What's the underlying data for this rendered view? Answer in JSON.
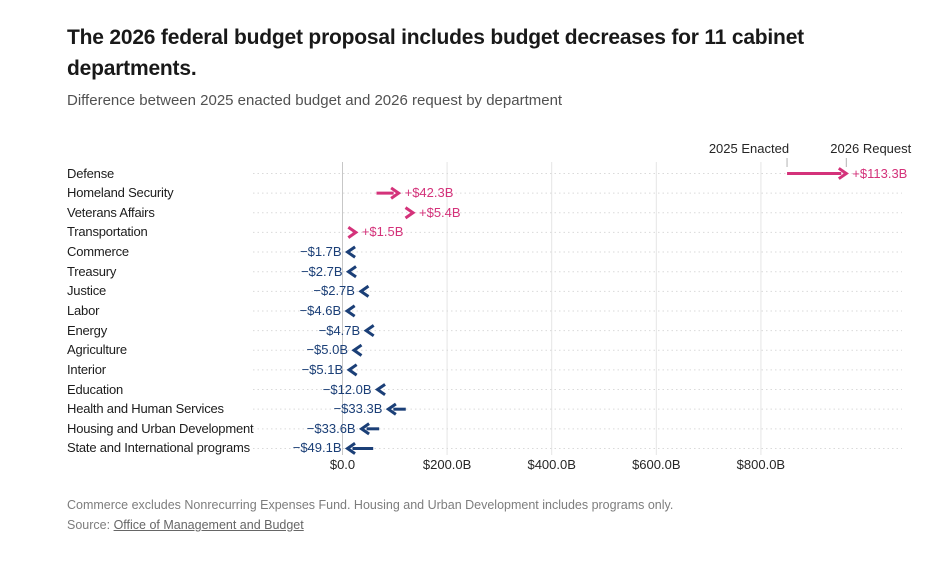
{
  "header": {
    "title": "The 2026 federal budget proposal includes budget decreases for 11 cabinet departments.",
    "subtitle": "Difference between 2025 enacted budget and 2026 request by department"
  },
  "chart_data": {
    "type": "arrow",
    "unit": "billions of US dollars",
    "xlim": [
      0,
      1070
    ],
    "grid": "vertical",
    "x_ticks": [
      {
        "label": "$0.0",
        "value": 0
      },
      {
        "label": "$200.0B",
        "value": 200
      },
      {
        "label": "$400.0B",
        "value": 400
      },
      {
        "label": "$600.0B",
        "value": 600
      },
      {
        "label": "$800.0B",
        "value": 800
      }
    ],
    "annotations": [
      {
        "text": "2025 Enacted",
        "value": 850
      },
      {
        "text": "2026 Request",
        "value": 963.3
      }
    ],
    "colors": {
      "increase": "#d4327a",
      "decrease": "#1b3f77"
    },
    "rows": [
      {
        "department": "Defense",
        "enacted_2025": 850.0,
        "request_2026": 963.3,
        "change": 113.3,
        "change_label": "+$113.3B",
        "direction": "increase"
      },
      {
        "department": "Homeland Security",
        "enacted_2025": 65.0,
        "request_2026": 107.3,
        "change": 42.3,
        "change_label": "+$42.3B",
        "direction": "increase"
      },
      {
        "department": "Veterans Affairs",
        "enacted_2025": 129.4,
        "request_2026": 134.8,
        "change": 5.4,
        "change_label": "+$5.4B",
        "direction": "increase"
      },
      {
        "department": "Transportation",
        "enacted_2025": 24.0,
        "request_2026": 25.5,
        "change": 1.5,
        "change_label": "+$1.5B",
        "direction": "increase"
      },
      {
        "department": "Commerce",
        "enacted_2025": 11.4,
        "request_2026": 9.7,
        "change": -1.7,
        "change_label": "−$1.7B",
        "direction": "decrease"
      },
      {
        "department": "Treasury",
        "enacted_2025": 14.2,
        "request_2026": 11.5,
        "change": -2.7,
        "change_label": "−$2.7B",
        "direction": "decrease"
      },
      {
        "department": "Justice",
        "enacted_2025": 38.0,
        "request_2026": 35.3,
        "change": -2.7,
        "change_label": "−$2.7B",
        "direction": "decrease"
      },
      {
        "department": "Labor",
        "enacted_2025": 13.5,
        "request_2026": 8.9,
        "change": -4.6,
        "change_label": "−$4.6B",
        "direction": "decrease"
      },
      {
        "department": "Energy",
        "enacted_2025": 50.0,
        "request_2026": 45.3,
        "change": -4.7,
        "change_label": "−$4.7B",
        "direction": "decrease"
      },
      {
        "department": "Agriculture",
        "enacted_2025": 27.0,
        "request_2026": 22.0,
        "change": -5.0,
        "change_label": "−$5.0B",
        "direction": "decrease"
      },
      {
        "department": "Interior",
        "enacted_2025": 17.8,
        "request_2026": 12.7,
        "change": -5.1,
        "change_label": "−$5.1B",
        "direction": "decrease"
      },
      {
        "department": "Education",
        "enacted_2025": 79.0,
        "request_2026": 67.0,
        "change": -12.0,
        "change_label": "−$12.0B",
        "direction": "decrease"
      },
      {
        "department": "Health and Human Services",
        "enacted_2025": 121.0,
        "request_2026": 87.7,
        "change": -33.3,
        "change_label": "−$33.3B",
        "direction": "decrease"
      },
      {
        "department": "Housing and Urban Development",
        "enacted_2025": 70.1,
        "request_2026": 36.5,
        "change": -33.6,
        "change_label": "−$33.6B",
        "direction": "decrease"
      },
      {
        "department": "State and International programs",
        "enacted_2025": 58.7,
        "request_2026": 9.6,
        "change": -49.1,
        "change_label": "−$49.1B",
        "direction": "decrease"
      }
    ]
  },
  "footer": {
    "note": "Commerce excludes Nonrecurring Expenses Fund. Housing and Urban Development includes programs only.",
    "source_prefix": "Source: ",
    "source_link": "Office of Management and Budget"
  }
}
